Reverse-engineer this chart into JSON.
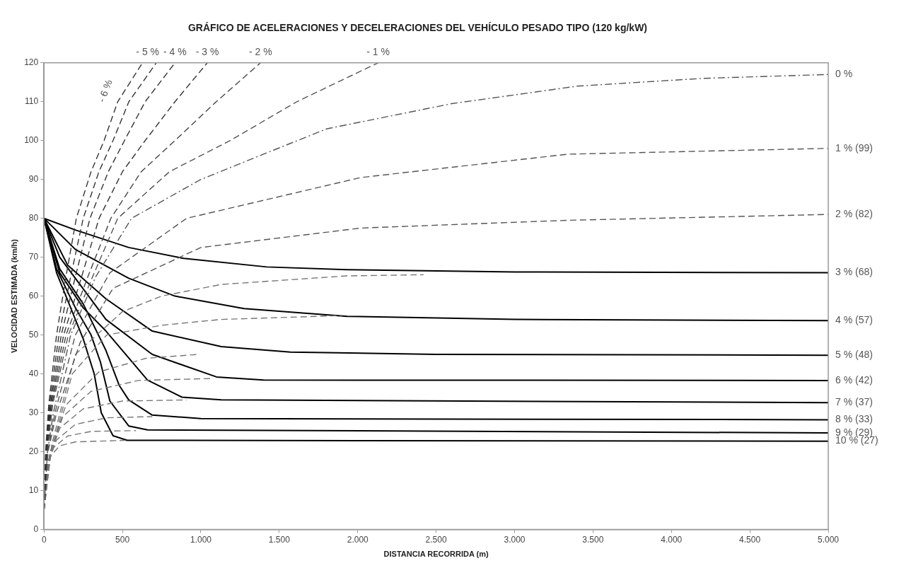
{
  "chart_data": {
    "type": "line",
    "title": "GRÁFICO DE ACELERACIONES Y DECELERACIONES DEL VEHÍCULO PESADO TIPO (120 kg/kW)",
    "xlabel": "DISTANCIA RECORRIDA (m)",
    "ylabel": "VELOCIDAD ESTIMADA (km/h)",
    "xlim": [
      0,
      5000
    ],
    "ylim": [
      0,
      120
    ],
    "xticks": [
      0,
      {
        "value": 500,
        "label": "500"
      },
      {
        "value": 1000,
        "label": "1.000"
      },
      {
        "value": 1500,
        "label": "1.500"
      },
      {
        "value": 2000,
        "label": "2.000"
      },
      {
        "value": 2500,
        "label": "2.500"
      },
      {
        "value": 3000,
        "label": "3.000"
      },
      {
        "value": 3500,
        "label": "3.500"
      },
      {
        "value": 4000,
        "label": "4.000"
      },
      {
        "value": 4500,
        "label": "4.500"
      },
      {
        "value": 5000,
        "label": "5.000"
      }
    ],
    "yticks": [
      0,
      10,
      20,
      30,
      40,
      50,
      60,
      70,
      80,
      90,
      100,
      110,
      120
    ],
    "grid": false,
    "legend": false,
    "marker": "none",
    "series": [
      {
        "name": "- 6 %",
        "color": "#333333",
        "line_style": "dashed",
        "x": [
          0,
          10,
          30,
          80,
          140,
          206,
          300,
          383,
          470,
          628
        ],
        "values": [
          5,
          20,
          32,
          50,
          65,
          80,
          92,
          100,
          110,
          120
        ]
      },
      {
        "name": "- 5 %",
        "color": "#333333",
        "line_style": "dashed",
        "x": [
          0,
          12,
          35,
          95,
          170,
          250,
          350,
          440,
          541,
          716
        ],
        "values": [
          5,
          20,
          32,
          50,
          65,
          80,
          92,
          100,
          110,
          120
        ]
      },
      {
        "name": "- 4 %",
        "color": "#333333",
        "line_style": "dashed",
        "x": [
          0,
          14,
          40,
          110,
          200,
          293,
          410,
          513,
          645,
          835
        ],
        "values": [
          5,
          20,
          32,
          50,
          65,
          80,
          92,
          100,
          110,
          120
        ]
      },
      {
        "name": "- 3 %",
        "color": "#333333",
        "line_style": "dashed",
        "x": [
          0,
          16,
          45,
          125,
          240,
          351,
          500,
          645,
          835,
          1041
        ],
        "values": [
          5,
          20,
          32,
          50,
          65,
          80,
          92,
          100,
          110,
          120
        ]
      },
      {
        "name": "- 2 %",
        "color": "#444444",
        "line_style": "dashed",
        "x": [
          0,
          18,
          50,
          140,
          280,
          426,
          620,
          835,
          1098,
          1380
        ],
        "values": [
          5,
          20,
          32,
          50,
          65,
          80,
          92,
          100,
          110,
          120
        ]
      },
      {
        "name": "- 1 %",
        "color": "#555555",
        "line_style": "dashed",
        "x": [
          0,
          20,
          55,
          155,
          310,
          470,
          800,
          1187,
          1612,
          2130
        ],
        "values": [
          5,
          20,
          32,
          50,
          65,
          80,
          92,
          100,
          110,
          120
        ]
      },
      {
        "name": "0 %",
        "color": "#555555",
        "line_style": "dotted",
        "x": [
          0,
          22,
          60,
          170,
          330,
          558,
          1000,
          1800,
          2600,
          3400,
          4200,
          5000
        ],
        "values": [
          5,
          20,
          30,
          50,
          65,
          80,
          90,
          103,
          109.5,
          114,
          116,
          117
        ]
      },
      {
        "name": "1 % (99)",
        "color": "#555555",
        "line_style": "dashed",
        "x": [
          0,
          24,
          70,
          200,
          420,
          909,
          2020,
          3340,
          5000
        ],
        "values": [
          5,
          20,
          30,
          50,
          66,
          80,
          90.5,
          96.5,
          98
        ]
      },
      {
        "name": "2 % (82)",
        "color": "#555555",
        "line_style": "dashed",
        "x": [
          0,
          26,
          80,
          230,
          440,
          1000,
          2020,
          3340,
          5000
        ],
        "values": [
          5,
          20,
          30,
          48,
          62,
          72.5,
          77.5,
          79.5,
          81
        ]
      },
      {
        "color": "#777777",
        "line_style": "dashed",
        "x": [
          0,
          50,
          200,
          500,
          750,
          1130,
          1930,
          2420
        ],
        "values": [
          5,
          22,
          45,
          56,
          60,
          63,
          65.2,
          65.5
        ]
      },
      {
        "color": "#777777",
        "line_style": "dashed",
        "x": [
          0,
          45,
          180,
          400,
          750,
          1130,
          1900
        ],
        "values": [
          5,
          20,
          40,
          50,
          52.5,
          54,
          55
        ]
      },
      {
        "color": "#777777",
        "line_style": "dashed",
        "x": [
          0,
          40,
          140,
          350,
          650,
          980
        ],
        "values": [
          5,
          20,
          32,
          40.5,
          44,
          45
        ]
      },
      {
        "color": "#777777",
        "line_style": "dashed",
        "x": [
          0,
          35,
          120,
          300,
          600,
          1068
        ],
        "values": [
          5,
          19,
          29,
          35.5,
          38.3,
          38.8
        ]
      },
      {
        "color": "#777777",
        "line_style": "dashed",
        "x": [
          0,
          30,
          100,
          250,
          500,
          909
        ],
        "values": [
          5,
          18,
          26,
          31,
          33,
          33.3
        ]
      },
      {
        "color": "#777777",
        "line_style": "dashed",
        "x": [
          0,
          25,
          80,
          200,
          400,
          690
        ],
        "values": [
          5,
          17,
          23,
          27,
          28.7,
          29
        ]
      },
      {
        "color": "#777777",
        "line_style": "dashed",
        "x": [
          0,
          20,
          60,
          150,
          300,
          586
        ],
        "values": [
          5,
          16,
          21,
          24,
          25.2,
          25.4
        ]
      },
      {
        "color": "#777777",
        "line_style": "dashed",
        "x": [
          0,
          15,
          45,
          100,
          200,
          513
        ],
        "values": [
          5,
          15,
          19,
          21.5,
          22.5,
          22.9
        ]
      },
      {
        "name": "3 % (68)",
        "color": "#000000",
        "line_style": "solid",
        "x": [
          0,
          200,
          540,
          890,
          1420,
          1930,
          3000,
          5000
        ],
        "values": [
          80,
          77,
          72.5,
          69.7,
          67.5,
          66.8,
          66.2,
          66
        ]
      },
      {
        "name": "4 % (57)",
        "color": "#000000",
        "line_style": "solid",
        "x": [
          0,
          200,
          540,
          835,
          1275,
          1933,
          3000,
          5000
        ],
        "values": [
          80,
          72,
          64.6,
          60,
          56.8,
          54.8,
          54,
          53.7
        ]
      },
      {
        "name": "5 % (48)",
        "color": "#000000",
        "line_style": "solid",
        "x": [
          0,
          150,
          395,
          690,
          1130,
          1570,
          2500,
          5000
        ],
        "values": [
          80,
          68,
          59.3,
          51,
          47,
          45.6,
          45,
          44.8
        ]
      },
      {
        "name": "6 % (42)",
        "color": "#000000",
        "line_style": "solid",
        "x": [
          0,
          100,
          395,
          690,
          1100,
          1400,
          5000
        ],
        "values": [
          80,
          70,
          54,
          45,
          39.2,
          38.4,
          38.3
        ]
      },
      {
        "name": "7 % (37)",
        "color": "#000000",
        "line_style": "solid",
        "x": [
          0,
          100,
          250,
          395,
          660,
          880,
          1130,
          5000
        ],
        "values": [
          80,
          66,
          57,
          51,
          38.4,
          34,
          33.3,
          32.6
        ]
      },
      {
        "name": "8 % (33)",
        "color": "#000000",
        "line_style": "solid",
        "x": [
          0,
          100,
          250,
          395,
          480,
          540,
          690,
          1000,
          5000
        ],
        "values": [
          80,
          67,
          58,
          46,
          37,
          33.3,
          29.4,
          28.5,
          28.2
        ]
      },
      {
        "name": "9 % (29)",
        "color": "#000000",
        "line_style": "solid",
        "x": [
          0,
          80,
          200,
          300,
          360,
          420,
          540,
          660,
          5000
        ],
        "values": [
          80,
          67,
          57,
          50,
          43,
          33,
          26.6,
          25.6,
          24.8
        ]
      },
      {
        "name": "10 % (27)",
        "color": "#000000",
        "line_style": "solid",
        "x": [
          0,
          80,
          180,
          250,
          320,
          365,
          440,
          530,
          5000
        ],
        "values": [
          80,
          66,
          56,
          49,
          40,
          30,
          24.1,
          22.9,
          22.7
        ]
      }
    ]
  }
}
